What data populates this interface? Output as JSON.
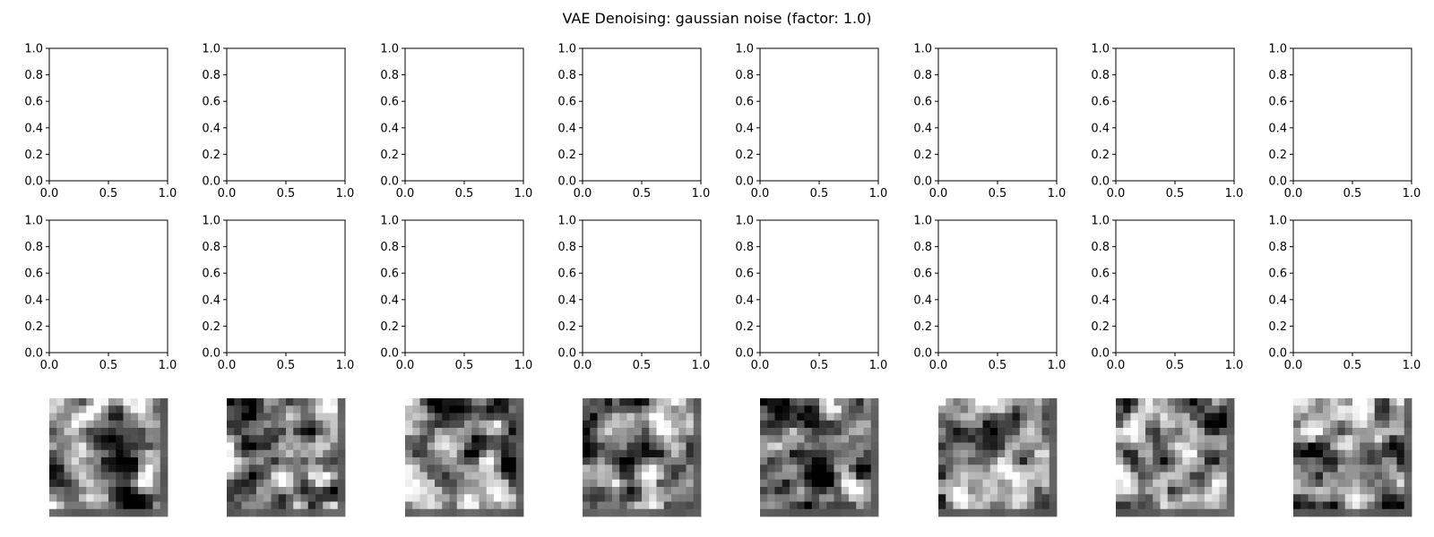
{
  "chart_data": {
    "type": "image_grid",
    "title": "VAE Denoising: gaussian noise (factor: 1.0)",
    "layout": {
      "rows": 3,
      "cols": 8
    },
    "empty_axes_rows": [
      {
        "row": 1,
        "xlim": [
          0.0,
          1.0
        ],
        "ylim": [
          0.0,
          1.0
        ],
        "xticks": [
          "0.0",
          "0.5",
          "1.0"
        ],
        "yticks": [
          "0.0",
          "0.2",
          "0.4",
          "0.6",
          "0.8",
          "1.0"
        ]
      },
      {
        "row": 2,
        "xlim": [
          0.0,
          1.0
        ],
        "ylim": [
          0.0,
          1.0
        ],
        "xticks": [
          "0.0",
          "0.5",
          "1.0"
        ],
        "yticks": [
          "0.0",
          "0.2",
          "0.4",
          "0.6",
          "0.8",
          "1.0"
        ]
      }
    ],
    "image_row": {
      "row": 3,
      "count": 8,
      "colormap": "gray",
      "content": "denoised random-noise reconstructions",
      "axes": "off"
    },
    "grid": false
  }
}
